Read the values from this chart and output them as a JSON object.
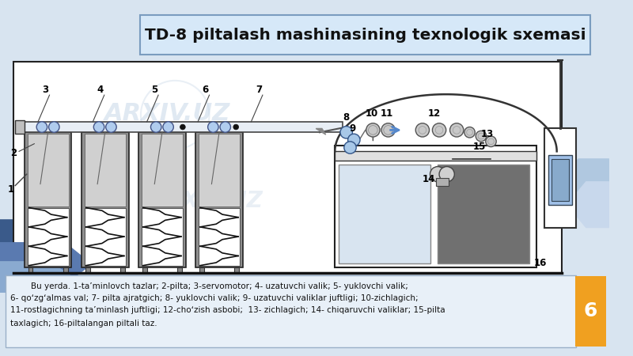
{
  "title": "TD-8 piltalash mashinasining texnologik sxemasi",
  "title_bg": "#d6e8f8",
  "title_border": "#7a9cbf",
  "slide_bg": "#d8e4f0",
  "desc_text_line1": "        Bu yerda. 1-ta’minlovch tazlar; 2-pilta; 3-servomotor; 4- uzatuvchi valik; 5- yuklovchi valik;",
  "desc_text_line2": "6- qoʻzgʻalmas val; 7- pilta ajratgich; 8- yuklovchi valik; 9- uzatuvchi valiklar juftligi; 10-zichlagich;",
  "desc_text_line3": "11-rostlagichning ta’minlash juftligi; 12-choʻzish asbobi;  13- zichlagich; 14- chiqaruvchi valiklar; 15-pilta",
  "desc_text_line4": "taxlagich; 16-piltalangan piltali taz.",
  "desc_bg": "#e8f0f8",
  "desc_border": "#9ab0c8",
  "page_num": "6",
  "page_num_bg": "#f0a020",
  "diagram_bg": "#ffffff",
  "diagram_border": "#333333",
  "arxiv_watermark": "ARXIV.UZ",
  "watermark_color": "#c8d8e8",
  "tank_gray": "#909090",
  "tank_light_gray": "#b8b8b8",
  "zigzag_white": "#ffffff",
  "bar_color": "#e8f0f8",
  "roller_blue": "#a0c0e0",
  "roller_gray": "#c0c0c0"
}
